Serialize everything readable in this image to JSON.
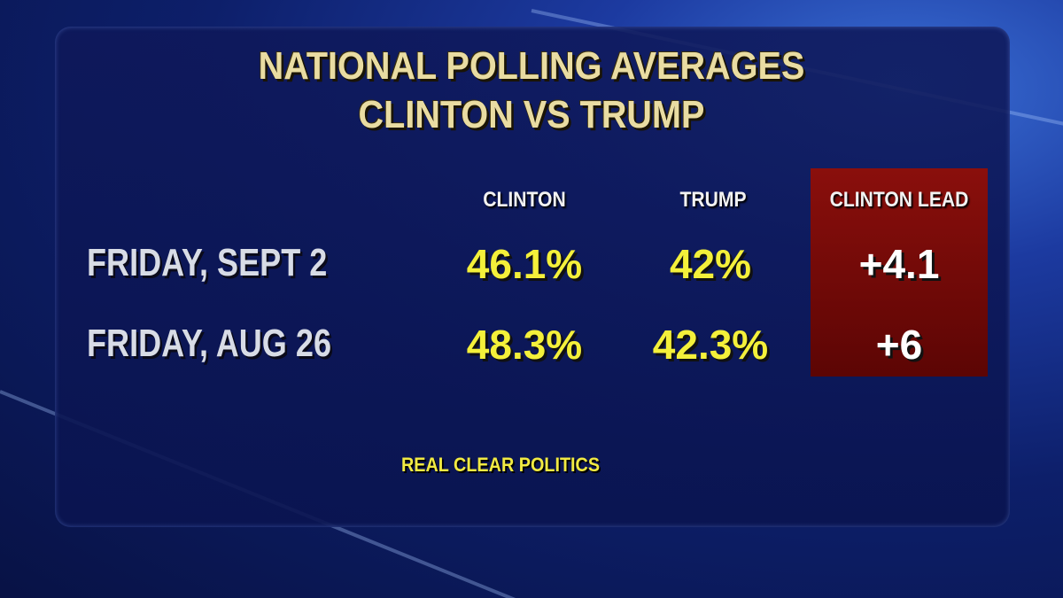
{
  "header": {
    "title": [
      "NATIONAL POLLING AVERAGES",
      "CLINTON VS TRUMP"
    ]
  },
  "table": {
    "columns": [
      "CLINTON",
      "TRUMP",
      "CLINTON LEAD"
    ],
    "rows": [
      [
        "FRIDAY, SEPT 2",
        "46.1%",
        "42%",
        "+4.1"
      ],
      [
        "FRIDAY, AUG 26",
        "48.3%",
        "42.3%",
        "+6"
      ]
    ]
  },
  "source": "REAL CLEAR POLITICS"
}
